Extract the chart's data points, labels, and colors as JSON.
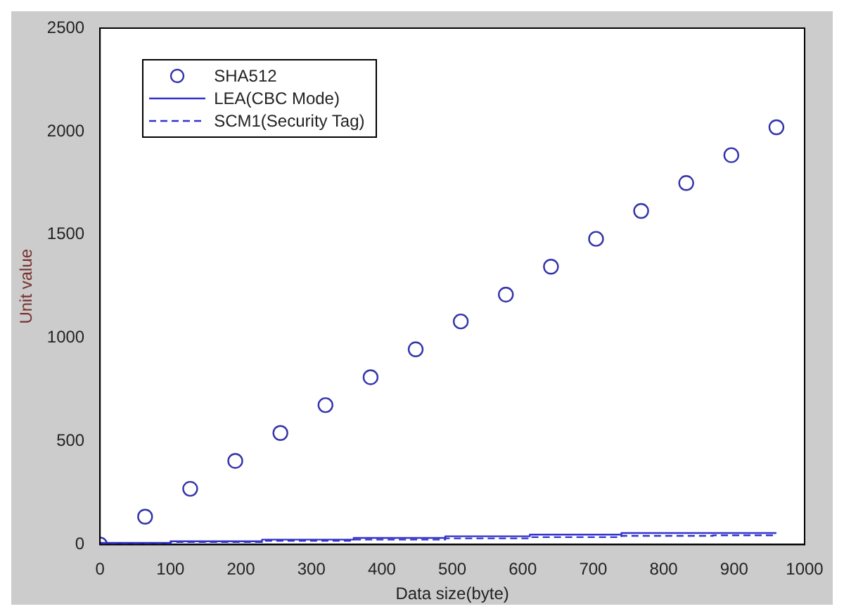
{
  "chart_data": {
    "type": "scatter",
    "xlabel": "Data size(byte)",
    "ylabel": "Unit value",
    "xlim": [
      0,
      1000
    ],
    "xticks": [
      0,
      100,
      200,
      300,
      400,
      500,
      600,
      700,
      800,
      900,
      1000
    ],
    "ylim": [
      0,
      2500
    ],
    "yticks": [
      0,
      500,
      1000,
      1500,
      2000,
      2500
    ],
    "legend": "top left",
    "grid": false,
    "series": [
      {
        "name": "SHA512",
        "type": "scatter",
        "marker": "circle",
        "color": "#3333aa",
        "x": [
          0,
          64,
          128,
          192,
          256,
          320,
          384,
          448,
          512,
          576,
          640,
          704,
          768,
          832,
          896,
          960
        ],
        "values": [
          0,
          135,
          270,
          405,
          540,
          675,
          810,
          945,
          1080,
          1210,
          1345,
          1480,
          1615,
          1750,
          1885,
          2020
        ]
      },
      {
        "name": "LEA(CBC Mode)",
        "type": "step",
        "line_style": "solid",
        "color": "#3333cc",
        "x": [
          0,
          100,
          230,
          360,
          490,
          610,
          740,
          870,
          960
        ],
        "values": [
          0,
          8,
          16,
          24,
          32,
          40,
          48,
          56,
          56
        ]
      },
      {
        "name": "SCM1(Security Tag)",
        "type": "step",
        "line_style": "dashed",
        "color": "#3333cc",
        "x": [
          0,
          100,
          230,
          360,
          490,
          610,
          740,
          870,
          960
        ],
        "values": [
          0,
          5,
          12,
          18,
          24,
          30,
          36,
          42,
          45
        ]
      }
    ]
  }
}
